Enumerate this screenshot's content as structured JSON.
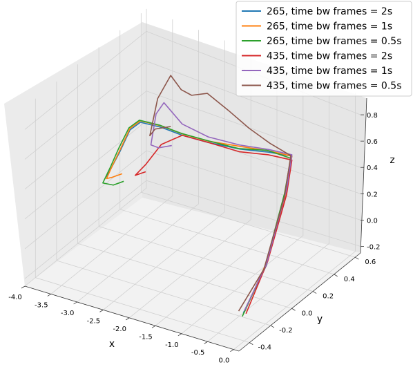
{
  "chart_data": {
    "type": "line",
    "projection": "3d",
    "xlabel": "x",
    "ylabel": "y",
    "zlabel": "z",
    "xlim": [
      -4.0,
      0.1
    ],
    "ylim": [
      -0.5,
      0.65
    ],
    "zlim": [
      -0.25,
      0.95
    ],
    "xticks": [
      "-4.0",
      "-3.5",
      "-3.0",
      "-2.5",
      "-2.0",
      "-1.5",
      "-1.0",
      "-0.5",
      "0.0"
    ],
    "xtick_values": [
      -4.0,
      -3.5,
      -3.0,
      -2.5,
      -2.0,
      -1.5,
      -1.0,
      -0.5,
      0.0
    ],
    "yticks": [
      "-0.4",
      "-0.2",
      "0.0",
      "0.2",
      "0.4",
      "0.6"
    ],
    "ytick_values": [
      -0.4,
      -0.2,
      0.0,
      0.2,
      0.4,
      0.6
    ],
    "zticks": [
      "-0.2",
      "0.0",
      "0.2",
      "0.4",
      "0.6",
      "0.8"
    ],
    "ztick_values": [
      -0.2,
      0.0,
      0.2,
      0.4,
      0.6,
      0.8
    ],
    "grid": true,
    "legend_position": "top-right",
    "series": [
      {
        "name": "265, time bw frames = 2s",
        "color": "#1f77b4",
        "points": [
          [
            -0.2,
            -0.31,
            -0.12
          ],
          [
            -0.02,
            -0.18,
            0.18
          ],
          [
            0.0,
            0.0,
            0.65
          ],
          [
            -0.02,
            0.06,
            0.85
          ],
          [
            -0.45,
            0.05,
            0.82
          ],
          [
            -1.0,
            0.05,
            0.76
          ],
          [
            -1.6,
            0.05,
            0.72
          ],
          [
            -2.1,
            0.05,
            0.7
          ],
          [
            -2.5,
            0.05,
            0.7
          ],
          [
            -2.9,
            0.05,
            0.68
          ],
          [
            -3.1,
            0.05,
            0.6
          ],
          [
            -3.3,
            0.05,
            0.42
          ],
          [
            -3.45,
            0.05,
            0.3
          ],
          [
            -3.55,
            0.05,
            0.22
          ]
        ]
      },
      {
        "name": "265, time bw frames = 1s",
        "color": "#ff7f0e",
        "points": [
          [
            -0.2,
            -0.3,
            -0.12
          ],
          [
            -0.03,
            -0.18,
            0.19
          ],
          [
            0.0,
            0.0,
            0.63
          ],
          [
            -0.02,
            0.06,
            0.85
          ],
          [
            -0.45,
            0.05,
            0.83
          ],
          [
            -1.0,
            0.05,
            0.78
          ],
          [
            -1.6,
            0.05,
            0.73
          ],
          [
            -2.1,
            0.05,
            0.71
          ],
          [
            -2.5,
            0.05,
            0.71
          ],
          [
            -2.9,
            0.05,
            0.69
          ],
          [
            -3.1,
            0.05,
            0.61
          ],
          [
            -3.3,
            0.05,
            0.43
          ],
          [
            -3.45,
            0.05,
            0.3
          ],
          [
            -3.55,
            0.05,
            0.21
          ],
          [
            -3.45,
            0.05,
            0.23
          ],
          [
            -3.25,
            0.05,
            0.28
          ]
        ]
      },
      {
        "name": "265, time bw frames = 0.5s",
        "color": "#2ca02c",
        "points": [
          [
            -0.2,
            -0.32,
            -0.14
          ],
          [
            -0.03,
            -0.19,
            0.17
          ],
          [
            0.0,
            -0.02,
            0.62
          ],
          [
            -0.02,
            0.05,
            0.84
          ],
          [
            -0.45,
            0.04,
            0.84
          ],
          [
            -1.0,
            0.04,
            0.77
          ],
          [
            -1.6,
            0.04,
            0.74
          ],
          [
            -2.1,
            0.04,
            0.72
          ],
          [
            -2.5,
            0.04,
            0.72
          ],
          [
            -2.9,
            0.04,
            0.7
          ],
          [
            -3.1,
            0.04,
            0.62
          ],
          [
            -3.3,
            0.04,
            0.45
          ],
          [
            -3.45,
            0.04,
            0.31
          ],
          [
            -3.6,
            0.04,
            0.18
          ],
          [
            -3.4,
            0.04,
            0.19
          ],
          [
            -3.2,
            0.04,
            0.24
          ]
        ]
      },
      {
        "name": "435, time bw frames = 2s",
        "color": "#d62728",
        "points": [
          [
            -0.15,
            -0.31,
            -0.12
          ],
          [
            -0.02,
            -0.17,
            0.2
          ],
          [
            0.0,
            0.0,
            0.6
          ],
          [
            -0.02,
            0.06,
            0.82
          ],
          [
            -0.45,
            0.05,
            0.8
          ],
          [
            -1.0,
            0.05,
            0.74
          ],
          [
            -1.6,
            0.05,
            0.72
          ],
          [
            -2.1,
            0.05,
            0.7
          ],
          [
            -2.5,
            0.05,
            0.58
          ],
          [
            -2.8,
            0.05,
            0.4
          ],
          [
            -3.0,
            0.05,
            0.3
          ],
          [
            -2.8,
            0.05,
            0.35
          ]
        ]
      },
      {
        "name": "435, time bw frames = 1s",
        "color": "#9467bd",
        "points": [
          [
            -0.2,
            -0.3,
            -0.11
          ],
          [
            -0.02,
            -0.18,
            0.19
          ],
          [
            0.0,
            0.0,
            0.64
          ],
          [
            -0.02,
            0.06,
            0.86
          ],
          [
            -0.45,
            0.05,
            0.84
          ],
          [
            -1.0,
            0.05,
            0.79
          ],
          [
            -1.6,
            0.05,
            0.76
          ],
          [
            -2.1,
            0.05,
            0.78
          ],
          [
            -2.45,
            0.05,
            0.88
          ],
          [
            -2.6,
            0.05,
            0.78
          ],
          [
            -2.7,
            0.05,
            0.55
          ],
          [
            -2.55,
            0.05,
            0.55
          ],
          [
            -2.3,
            0.05,
            0.6
          ]
        ]
      },
      {
        "name": "435, time bw frames = 0.5s",
        "color": "#8c564b",
        "points": [
          [
            -0.25,
            -0.33,
            -0.1
          ],
          [
            -0.03,
            -0.2,
            0.16
          ],
          [
            0.0,
            -0.02,
            0.6
          ],
          [
            -0.02,
            0.05,
            0.86
          ],
          [
            -0.4,
            0.04,
            0.9
          ],
          [
            -0.8,
            0.04,
            0.95
          ],
          [
            -1.2,
            0.04,
            1.02
          ],
          [
            -1.6,
            0.04,
            1.08
          ],
          [
            -1.9,
            0.04,
            1.02
          ],
          [
            -2.1,
            0.04,
            1.03
          ],
          [
            -2.3,
            0.04,
            1.1
          ],
          [
            -2.45,
            0.04,
            0.98
          ],
          [
            -2.55,
            0.04,
            0.9
          ],
          [
            -2.7,
            0.04,
            0.62
          ],
          [
            -2.6,
            0.04,
            0.68
          ],
          [
            -2.3,
            0.04,
            0.74
          ]
        ]
      }
    ]
  }
}
